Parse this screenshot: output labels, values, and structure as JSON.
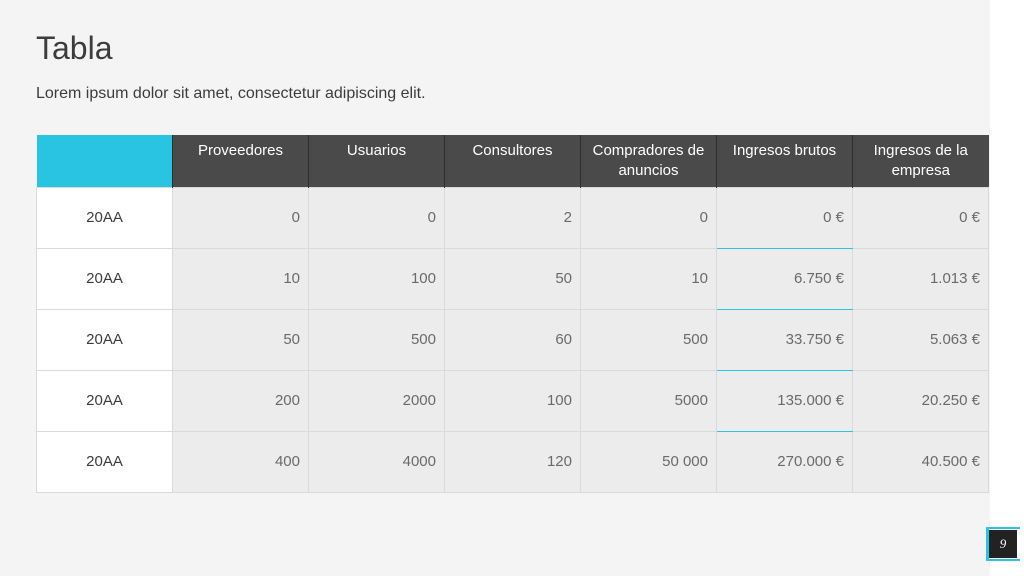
{
  "slide": {
    "title": "Tabla",
    "subtitle": "Lorem ipsum dolor sit amet, consectetur adipiscing elit.",
    "page_number": "9"
  },
  "table": {
    "headers": [
      "",
      "Proveedores",
      "Usuarios",
      "Consultores",
      "Compradores de anuncios",
      "Ingresos brutos",
      "Ingresos de la empresa"
    ],
    "rows": [
      [
        "20AA",
        "0",
        "0",
        "2",
        "0",
        "0 €",
        "0 €"
      ],
      [
        "20AA",
        "10",
        "100",
        "50",
        "10",
        "6.750 €",
        "1.013 €"
      ],
      [
        "20AA",
        "50",
        "500",
        "60",
        "500",
        "33.750 €",
        "5.063 €"
      ],
      [
        "20AA",
        "200",
        "2000",
        "100",
        "5000",
        "135.000 €",
        "20.250 €"
      ],
      [
        "20AA",
        "400",
        "4000",
        "120",
        "50 000",
        "270.000 €",
        "40.500 €"
      ]
    ]
  },
  "colors": {
    "accent": "#29c4e2",
    "header_bg": "#4a4a4a",
    "background": "#f4f4f4"
  }
}
